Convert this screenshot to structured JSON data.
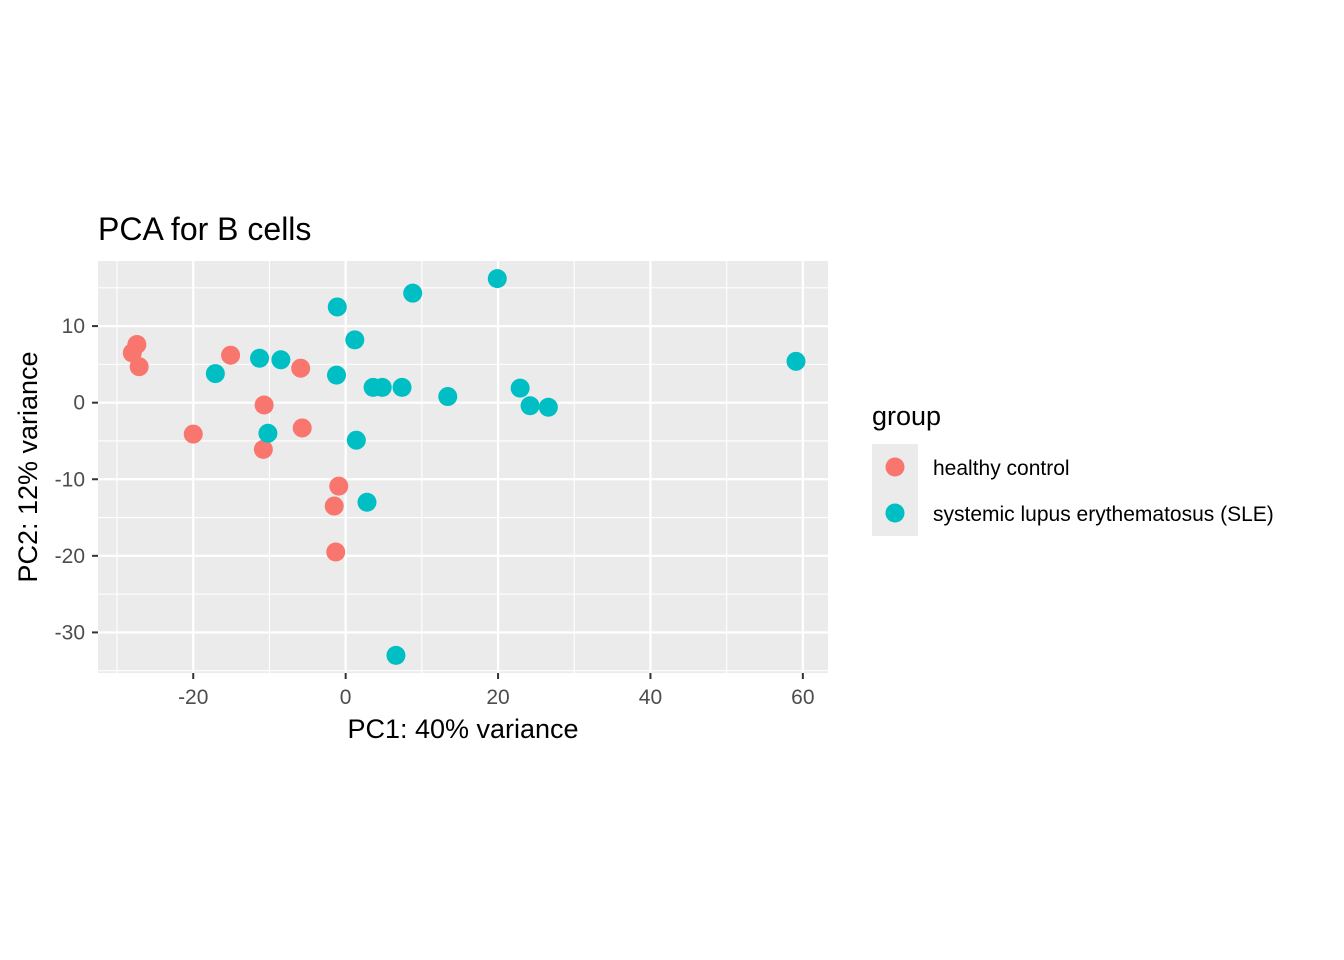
{
  "chart_data": {
    "type": "scatter",
    "title": "PCA for B cells",
    "xlabel": "PC1: 40% variance",
    "ylabel": "PC2: 12% variance",
    "xlim": [
      -32.5,
      63.3
    ],
    "ylim": [
      -35.3,
      18.5
    ],
    "x_ticks": [
      -20,
      0,
      20,
      40,
      60
    ],
    "y_ticks": [
      -30,
      -20,
      -10,
      0,
      10
    ],
    "x_tick_labels": [
      "-20",
      "0",
      "20",
      "40",
      "60"
    ],
    "y_tick_labels": [
      "-30",
      "-20",
      "-10",
      "0",
      "10"
    ],
    "grid": true,
    "background": "#ebebeb",
    "legend": {
      "title": "group",
      "position": "right",
      "entries": [
        {
          "label": "healthy control",
          "color": "#F8766D"
        },
        {
          "label": "systemic lupus erythematosus (SLE)",
          "color": "#00BFC4"
        }
      ]
    },
    "series": [
      {
        "name": "healthy control",
        "color": "#F8766D",
        "points": [
          [
            -27.4,
            7.6
          ],
          [
            -28.0,
            6.5
          ],
          [
            -27.1,
            4.7
          ],
          [
            -15.1,
            6.2
          ],
          [
            -5.9,
            4.5
          ],
          [
            -10.7,
            -0.3
          ],
          [
            -20.0,
            -4.1
          ],
          [
            -5.7,
            -3.3
          ],
          [
            -10.8,
            -6.1
          ],
          [
            -0.9,
            -10.9
          ],
          [
            -1.5,
            -13.5
          ],
          [
            -1.3,
            -19.5
          ]
        ]
      },
      {
        "name": "systemic lupus erythematosus (SLE)",
        "color": "#00BFC4",
        "points": [
          [
            19.9,
            16.2
          ],
          [
            8.8,
            14.3
          ],
          [
            -1.1,
            12.5
          ],
          [
            1.2,
            8.2
          ],
          [
            -11.3,
            5.8
          ],
          [
            -8.5,
            5.6
          ],
          [
            -17.1,
            3.8
          ],
          [
            -1.2,
            3.6
          ],
          [
            3.6,
            2.0
          ],
          [
            4.8,
            2.0
          ],
          [
            7.4,
            2.0
          ],
          [
            22.9,
            1.9
          ],
          [
            13.4,
            0.8
          ],
          [
            24.2,
            -0.4
          ],
          [
            26.6,
            -0.6
          ],
          [
            59.1,
            5.4
          ],
          [
            -10.2,
            -4.0
          ],
          [
            1.4,
            -4.9
          ],
          [
            2.8,
            -13.0
          ],
          [
            6.6,
            -33.0
          ]
        ]
      }
    ]
  }
}
